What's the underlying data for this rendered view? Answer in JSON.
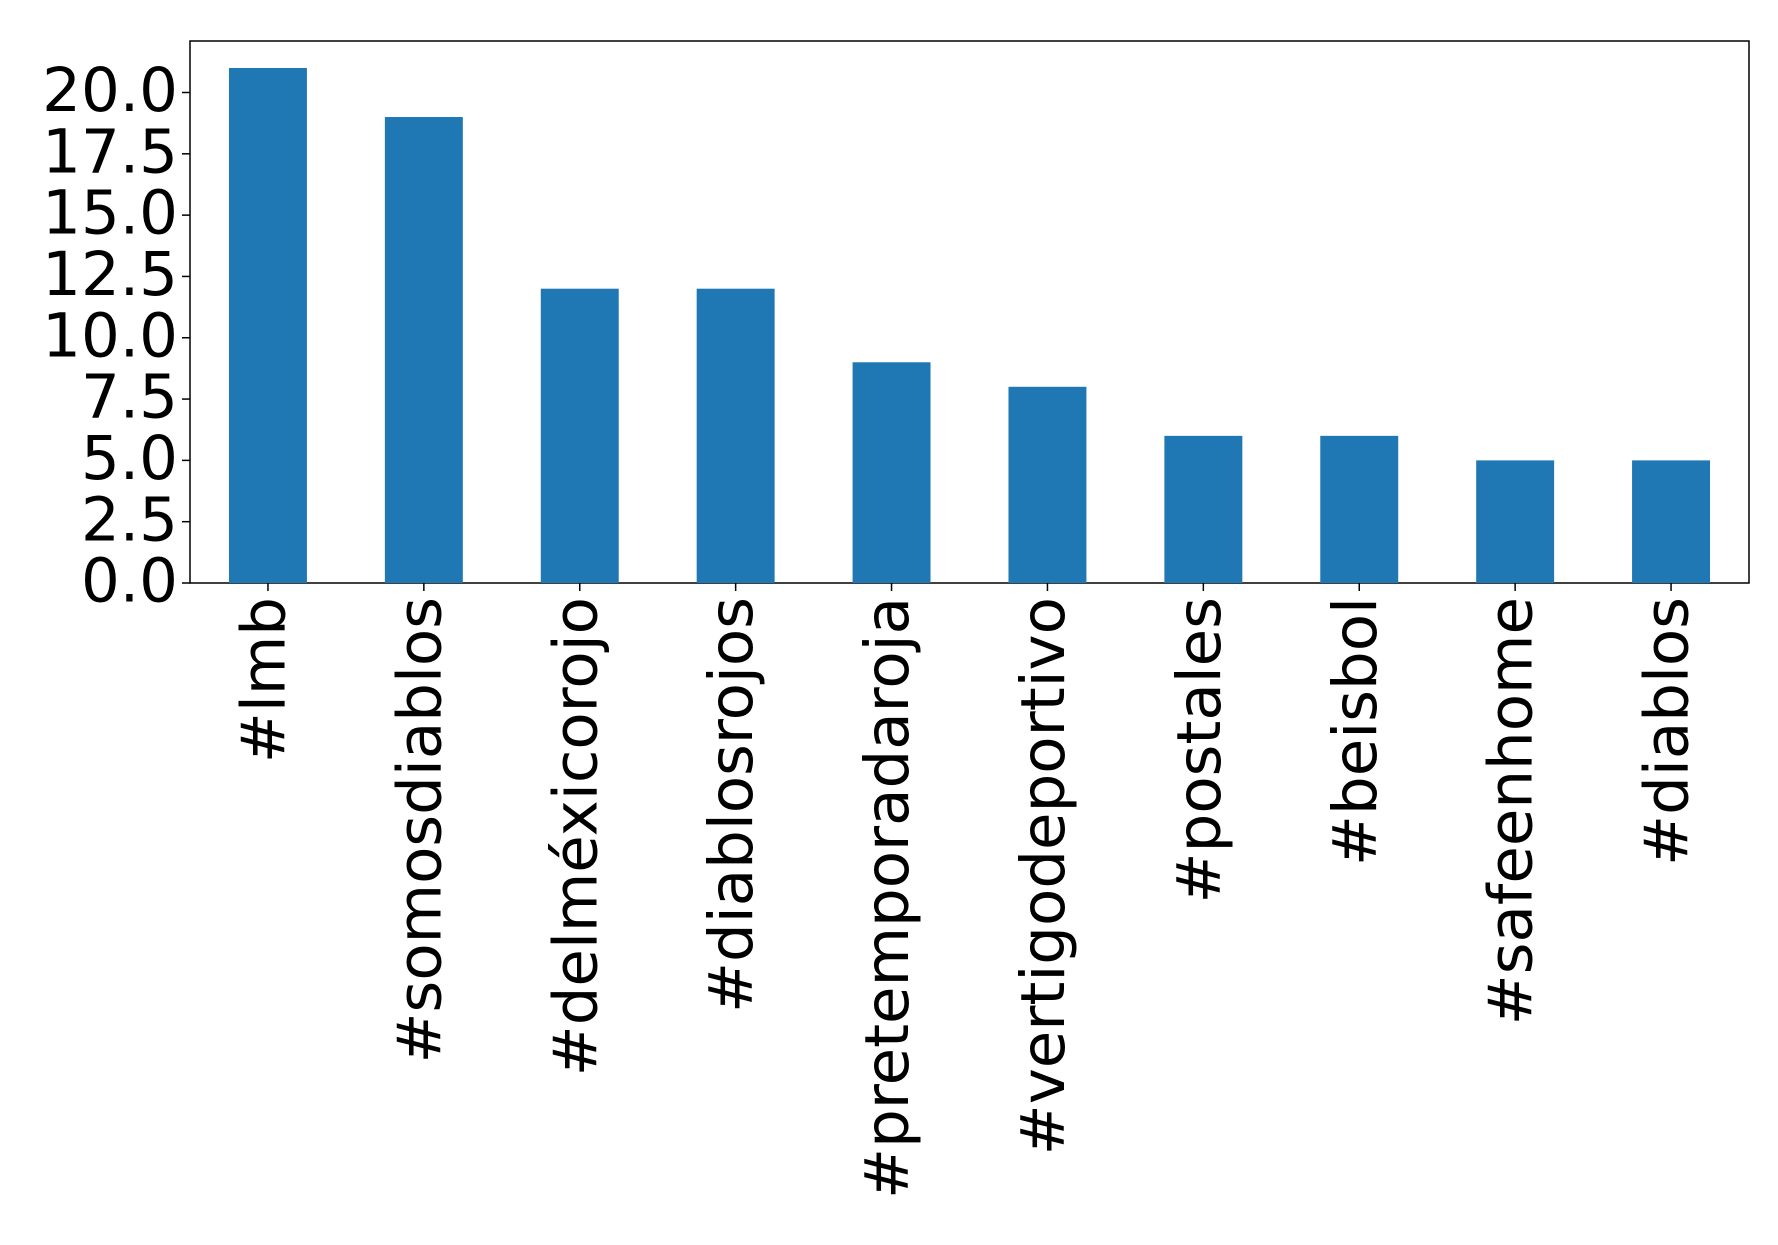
{
  "chart_data": {
    "type": "bar",
    "categories": [
      "#lmb",
      "#somosdiablos",
      "#delméxicorojo",
      "#diablosrojos",
      "#pretemporadaroja",
      "#vertigodeportivo",
      "#postales",
      "#beisbol",
      "#safeenhome",
      "#diablos"
    ],
    "values": [
      21,
      19,
      12,
      12,
      9,
      8,
      6,
      6,
      5,
      5
    ],
    "color": "#1f77b4",
    "ylim": [
      0,
      22.1
    ],
    "yticks": [
      {
        "value": 0,
        "label": "0.0"
      },
      {
        "value": 2.5,
        "label": "2.5"
      },
      {
        "value": 5,
        "label": "5.0"
      },
      {
        "value": 7.5,
        "label": "7.5"
      },
      {
        "value": 10,
        "label": "10.0"
      },
      {
        "value": 12.5,
        "label": "12.5"
      },
      {
        "value": 15,
        "label": "15.0"
      },
      {
        "value": 17.5,
        "label": "17.5"
      },
      {
        "value": 20,
        "label": "20.0"
      }
    ],
    "grid": false
  }
}
